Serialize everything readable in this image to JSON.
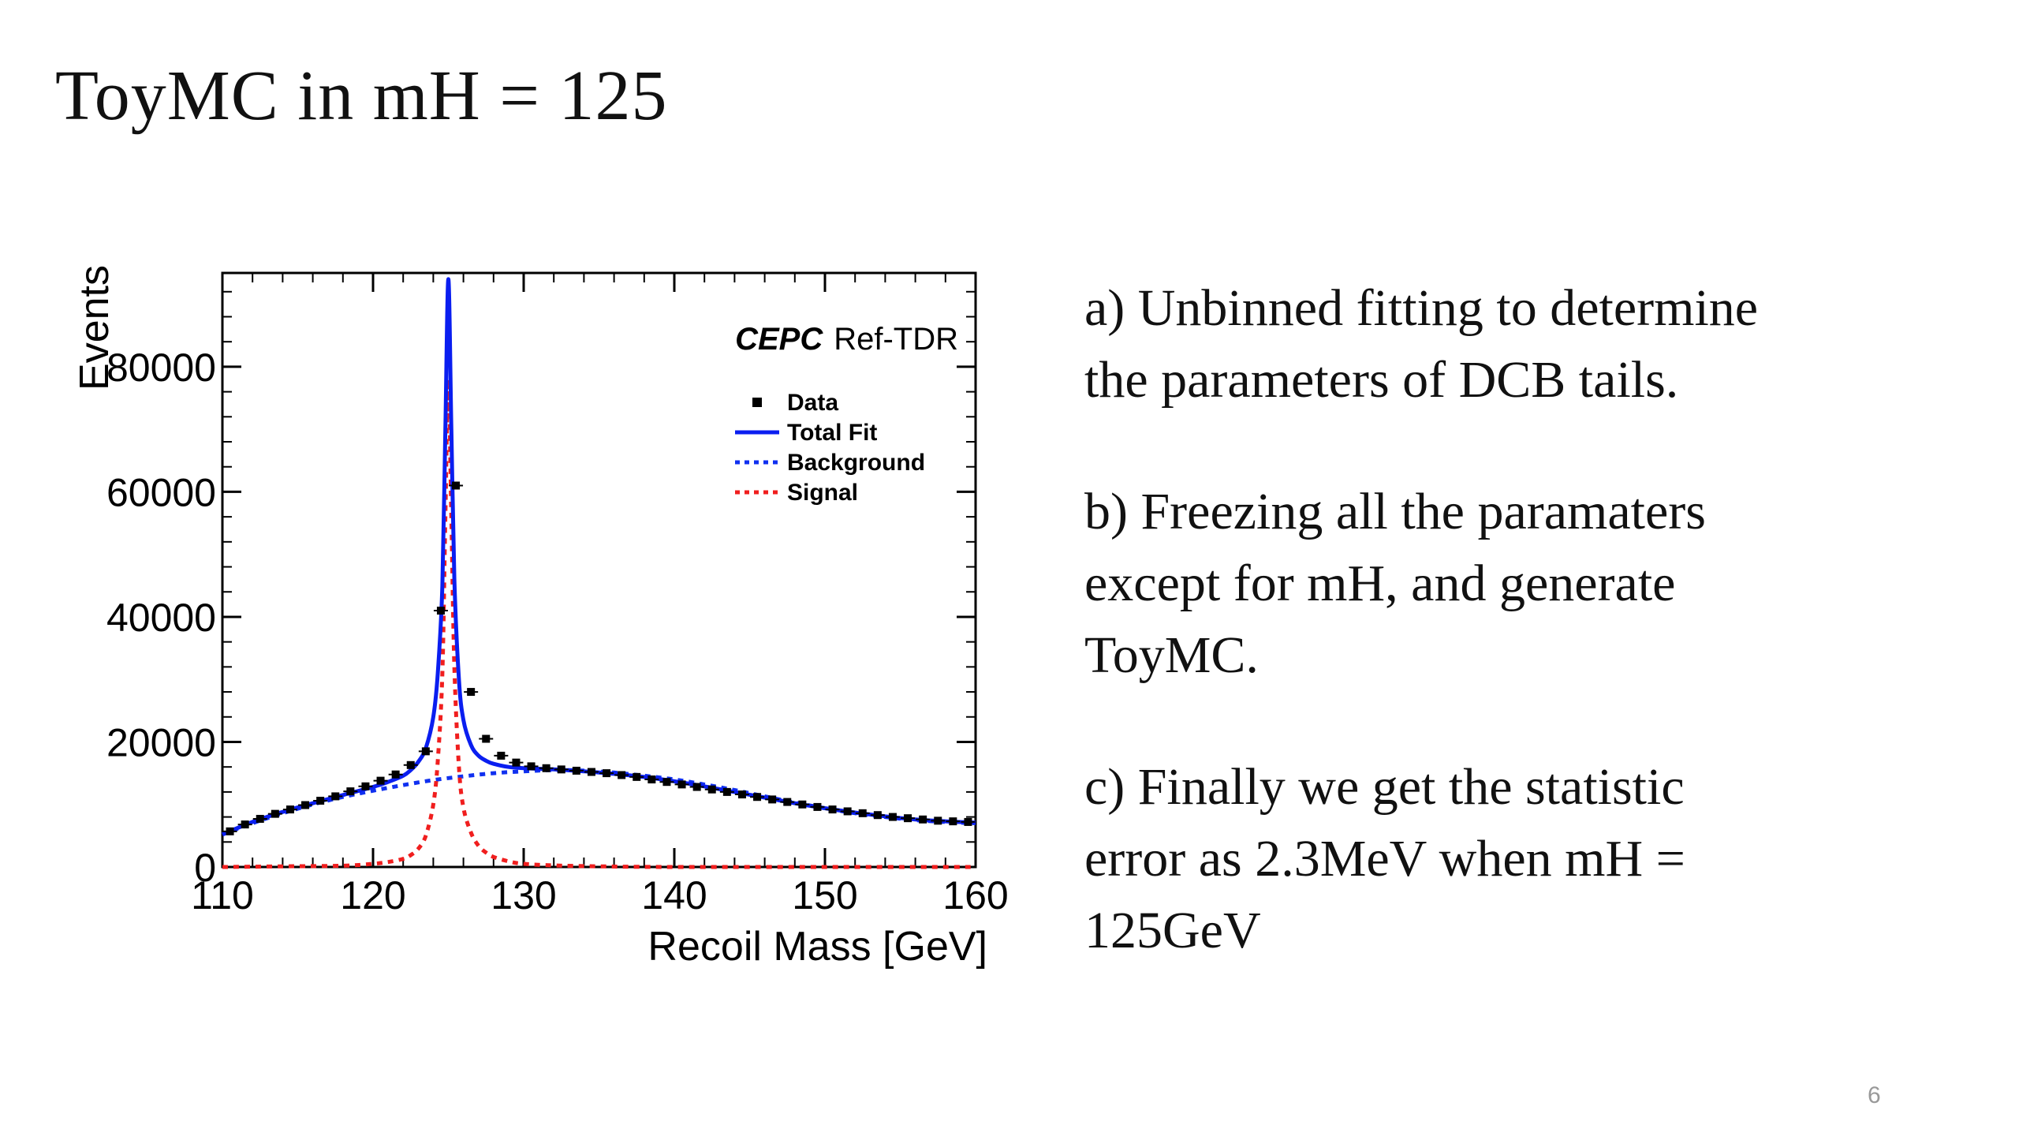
{
  "slide": {
    "title": "ToyMC in mH = 125",
    "page_number": "6",
    "bullets": [
      "a) Unbinned fitting to determine\nthe parameters of  DCB tails.",
      "b) Freezing all the paramaters\nexcept for mH, and generate\nToyMC.",
      "c) Finally we get the statistic\nerror as 2.3MeV when mH =\n125GeV"
    ]
  },
  "chart_data": {
    "type": "scatter",
    "xlabel": "Recoil Mass [GeV]",
    "ylabel": "Events",
    "xlim": [
      110,
      160
    ],
    "ylim": [
      0,
      95000
    ],
    "xticks": [
      110,
      120,
      130,
      140,
      150,
      160
    ],
    "yticks": [
      0,
      20000,
      40000,
      60000,
      80000
    ],
    "grid": false,
    "legend_position": "top-right",
    "annotation": {
      "experiment": "CEPC",
      "tag": "Ref-TDR"
    },
    "colors": {
      "total_fit": "#0a1ef0",
      "background": "#1030f0",
      "signal": "#f01e1e",
      "data": "#000000"
    },
    "series": [
      {
        "name": "Data",
        "style": "markers",
        "x": [
          110.5,
          111.5,
          112.5,
          113.5,
          114.5,
          115.5,
          116.5,
          117.5,
          118.5,
          119.5,
          120.5,
          121.5,
          122.5,
          123.5,
          124.5,
          125.5,
          126.5,
          127.5,
          128.5,
          129.5,
          130.5,
          131.5,
          132.5,
          133.5,
          134.5,
          135.5,
          136.5,
          137.5,
          138.5,
          139.5,
          140.5,
          141.5,
          142.5,
          143.5,
          144.5,
          145.5,
          146.5,
          147.5,
          148.5,
          149.5,
          150.5,
          151.5,
          152.5,
          153.5,
          154.5,
          155.5,
          156.5,
          157.5,
          158.5,
          159.5
        ],
        "y": [
          5700,
          6800,
          7700,
          8500,
          9200,
          9900,
          10600,
          11300,
          12100,
          12900,
          13800,
          14800,
          16300,
          18500,
          41000,
          61000,
          28000,
          20500,
          17800,
          16700,
          16100,
          15800,
          15600,
          15400,
          15200,
          15000,
          14700,
          14400,
          14000,
          13600,
          13200,
          12800,
          12400,
          12000,
          11600,
          11200,
          10800,
          10400,
          10000,
          9600,
          9200,
          8900,
          8600,
          8300,
          8000,
          7800,
          7600,
          7400,
          7300,
          7200
        ]
      },
      {
        "name": "Total Fit",
        "style": "solid",
        "x": [
          110,
          112,
          114,
          116,
          118,
          120,
          121,
          122,
          122.5,
          123,
          123.5,
          124,
          124.3,
          124.6,
          124.8,
          125,
          125.2,
          125.4,
          125.7,
          126,
          126.5,
          127,
          127.5,
          128,
          129,
          130,
          132,
          134,
          136,
          138,
          140,
          142,
          144,
          146,
          148,
          150,
          152,
          154,
          156,
          158,
          160
        ],
        "y": [
          5200,
          7200,
          8800,
          10200,
          11500,
          12800,
          13600,
          14600,
          15500,
          16800,
          19000,
          24000,
          31000,
          45000,
          70000,
          94000,
          70000,
          46000,
          30000,
          23500,
          19500,
          17800,
          17000,
          16500,
          16000,
          15800,
          15600,
          15300,
          14900,
          14400,
          13700,
          12900,
          12000,
          11100,
          10200,
          9400,
          8700,
          8100,
          7600,
          7300,
          7100
        ]
      },
      {
        "name": "Background",
        "style": "dotted",
        "x": [
          110,
          112,
          114,
          116,
          118,
          120,
          122,
          124,
          126,
          128,
          130,
          132,
          134,
          136,
          138,
          140,
          142,
          144,
          146,
          148,
          150,
          152,
          154,
          156,
          158,
          160
        ],
        "y": [
          5200,
          7000,
          8600,
          10000,
          11200,
          12200,
          13100,
          13900,
          14500,
          15000,
          15300,
          15500,
          15400,
          15100,
          14600,
          14000,
          13200,
          12300,
          11300,
          10300,
          9400,
          8600,
          8000,
          7500,
          7200,
          7000
        ]
      },
      {
        "name": "Signal",
        "style": "dotted",
        "x": [
          110,
          114,
          118,
          120,
          121,
          122,
          122.5,
          123,
          123.5,
          124,
          124.3,
          124.6,
          124.8,
          125,
          125.2,
          125.4,
          125.7,
          126,
          126.5,
          127,
          127.5,
          128,
          129,
          130,
          132,
          135,
          140,
          150,
          160
        ],
        "y": [
          0,
          100,
          200,
          500,
          800,
          1300,
          1900,
          2900,
          5000,
          10000,
          17000,
          31000,
          56000,
          78000,
          56000,
          32000,
          16000,
          9500,
          5500,
          3400,
          2300,
          1600,
          900,
          500,
          250,
          100,
          0,
          0,
          0
        ]
      }
    ]
  }
}
